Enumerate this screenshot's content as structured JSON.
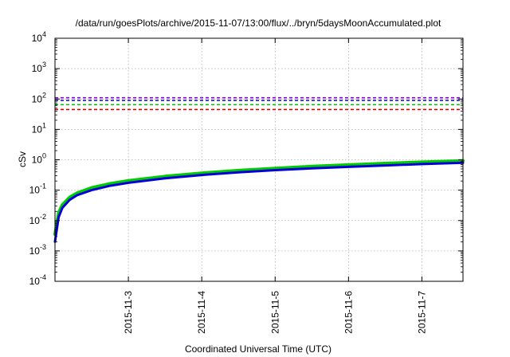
{
  "chart_data": {
    "type": "line",
    "title": "/data/run/goesPlots/archive/2015-11-07/13:00/flux/../bryn/5daysMoonAccumulated.plot",
    "xlabel": "Coordinated Universal Time (UTC)",
    "ylabel": "cSv",
    "y_scale": "log",
    "ylim_exponents": [
      -4,
      4
    ],
    "y_ticks": [
      {
        "base": "10",
        "exp": "4"
      },
      {
        "base": "10",
        "exp": "3"
      },
      {
        "base": "10",
        "exp": "2"
      },
      {
        "base": "10",
        "exp": "1"
      },
      {
        "base": "10",
        "exp": "0"
      },
      {
        "base": "10",
        "exp": "-1"
      },
      {
        "base": "10",
        "exp": "-2"
      },
      {
        "base": "10",
        "exp": "-3"
      },
      {
        "base": "10",
        "exp": "-4"
      }
    ],
    "x_ticks": [
      "2015-11-3",
      "2015-11-4",
      "2015-11-5",
      "2015-11-6",
      "2015-11-7"
    ],
    "xlim_days_from_2015_11_2": [
      0.0,
      5.56
    ],
    "x_tick_days_from_2015_11_2": [
      1,
      2,
      3,
      4,
      5
    ],
    "grid": true,
    "threshold_lines": [
      {
        "value": 110,
        "color": "#8800cc",
        "style": "dashed"
      },
      {
        "value": 90,
        "color": "#0000dd",
        "style": "dashed"
      },
      {
        "value": 65,
        "color": "#00bb00",
        "style": "dashed"
      },
      {
        "value": 45,
        "color": "#dd0000",
        "style": "dashed"
      }
    ],
    "series": [
      {
        "color": "#00cc00",
        "x": [
          0.0,
          0.05,
          0.1,
          0.2,
          0.3,
          0.5,
          0.75,
          1.0,
          1.5,
          2.0,
          2.5,
          3.0,
          3.5,
          4.0,
          4.5,
          5.0,
          5.56
        ],
        "y": [
          0.0035,
          0.018,
          0.033,
          0.058,
          0.08,
          0.12,
          0.163,
          0.205,
          0.285,
          0.365,
          0.445,
          0.525,
          0.605,
          0.68,
          0.76,
          0.84,
          0.93
        ]
      },
      {
        "color": "#0000dd",
        "x": [
          0.0,
          0.05,
          0.1,
          0.2,
          0.3,
          0.5,
          0.75,
          1.0,
          1.5,
          2.0,
          2.5,
          3.0,
          3.5,
          4.0,
          4.5,
          5.0,
          5.56
        ],
        "y": [
          0.002,
          0.013,
          0.026,
          0.048,
          0.068,
          0.1,
          0.14,
          0.175,
          0.245,
          0.315,
          0.385,
          0.455,
          0.52,
          0.585,
          0.65,
          0.72,
          0.8
        ]
      }
    ]
  }
}
